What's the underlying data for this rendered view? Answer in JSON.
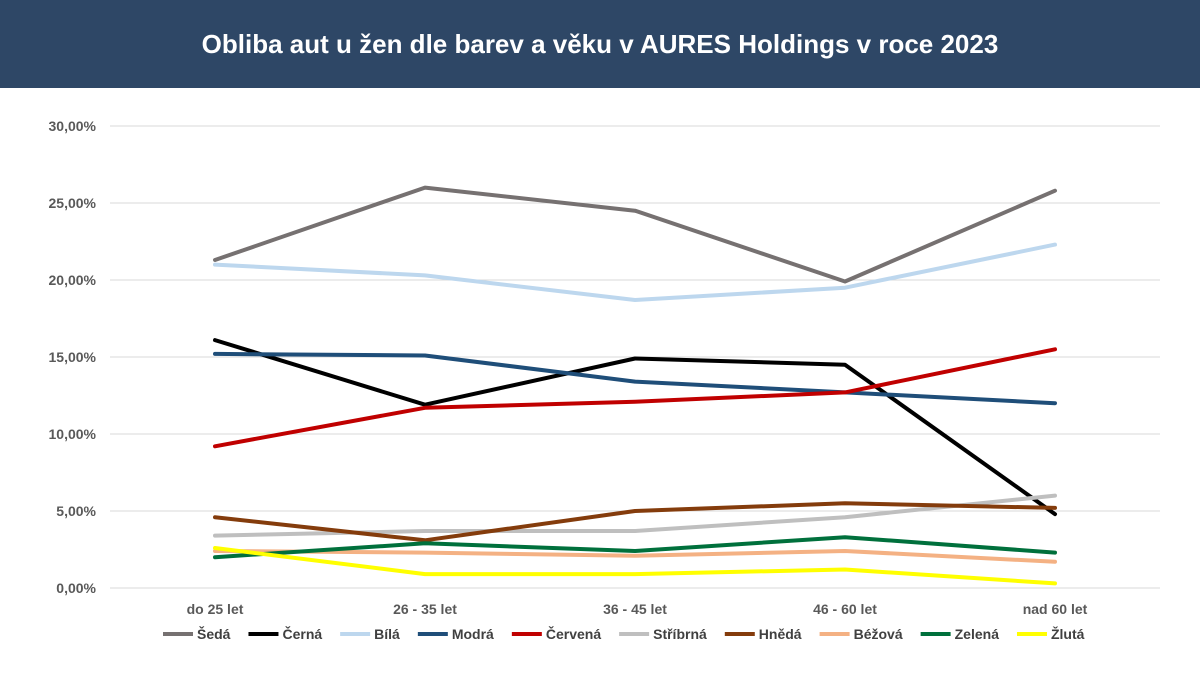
{
  "title": "Obliba aut u žen dle barev a věku v AURES Holdings v roce 2023",
  "chart_data": {
    "type": "line",
    "title": "Obliba aut u žen dle barev a věku v AURES Holdings v roce 2023",
    "categories": [
      "do 25 let",
      "26 - 35 let",
      "36 - 45 let",
      "46 - 60 let",
      "nad 60 let"
    ],
    "ylim": [
      0,
      30
    ],
    "y_ticks": [
      0,
      5,
      10,
      15,
      20,
      25,
      30
    ],
    "y_tick_labels": [
      "0,00%",
      "5,00%",
      "10,00%",
      "15,00%",
      "20,00%",
      "25,00%",
      "30,00%"
    ],
    "grid": true,
    "legend_position": "bottom",
    "series": [
      {
        "name": "Šedá",
        "color": "#767171",
        "values": [
          21.3,
          26.0,
          24.5,
          19.9,
          25.8
        ]
      },
      {
        "name": "Černá",
        "color": "#000000",
        "values": [
          16.1,
          11.9,
          14.9,
          14.5,
          4.8
        ]
      },
      {
        "name": "Bílá",
        "color": "#bdd7ee",
        "values": [
          21.0,
          20.3,
          18.7,
          19.5,
          22.3
        ]
      },
      {
        "name": "Modrá",
        "color": "#1f4e79",
        "values": [
          15.2,
          15.1,
          13.4,
          12.7,
          12.0
        ]
      },
      {
        "name": "Červená",
        "color": "#c00000",
        "values": [
          9.2,
          11.7,
          12.1,
          12.7,
          15.5
        ]
      },
      {
        "name": "Stříbrná",
        "color": "#bfbfbf",
        "values": [
          3.4,
          3.7,
          3.7,
          4.6,
          6.0
        ]
      },
      {
        "name": "Hnědá",
        "color": "#843c0c",
        "values": [
          4.6,
          3.1,
          5.0,
          5.5,
          5.2
        ]
      },
      {
        "name": "Béžová",
        "color": "#f4b183",
        "values": [
          2.4,
          2.3,
          2.1,
          2.4,
          1.7
        ]
      },
      {
        "name": "Zelená",
        "color": "#00703c",
        "values": [
          2.0,
          2.9,
          2.4,
          3.3,
          2.3
        ]
      },
      {
        "name": "Žlutá",
        "color": "#ffff00",
        "values": [
          2.6,
          0.9,
          0.9,
          1.2,
          0.3
        ]
      }
    ]
  }
}
